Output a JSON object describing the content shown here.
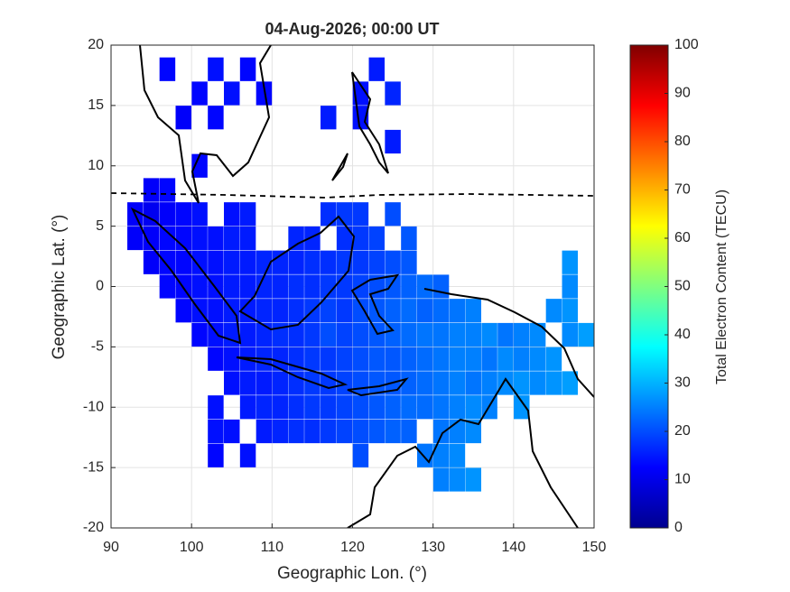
{
  "chart_data": {
    "type": "heatmap",
    "title": "04-Aug-2026; 00:00 UT",
    "x_label": "Geographic Lon. (°)",
    "y_label": "Geographic Lat. (°)",
    "xlim": [
      90,
      150
    ],
    "ylim": [
      -20,
      20
    ],
    "xticks": [
      90,
      100,
      110,
      120,
      130,
      140,
      150
    ],
    "yticks": [
      -20,
      -15,
      -10,
      -5,
      0,
      5,
      10,
      15,
      20
    ],
    "grid": true,
    "colormap": "jet",
    "colorbar": {
      "label": "Total Electron Content (TECU)",
      "lim": [
        0,
        100
      ],
      "ticks": [
        0,
        10,
        20,
        30,
        40,
        50,
        60,
        70,
        80,
        90,
        100
      ]
    },
    "x": [
      93,
      95,
      97,
      99,
      101,
      103,
      105,
      107,
      109,
      111,
      113,
      115,
      117,
      119,
      121,
      123,
      125,
      127,
      129,
      131,
      133,
      135,
      137,
      139,
      141,
      143,
      145,
      147,
      149
    ],
    "y": [
      18,
      16,
      14,
      12,
      10,
      8,
      6,
      4,
      2,
      0,
      -2,
      -4,
      -6,
      -8,
      -10,
      -12,
      -14,
      -16
    ],
    "values": [
      [
        null,
        null,
        13,
        null,
        null,
        14,
        null,
        13,
        null,
        null,
        null,
        null,
        null,
        null,
        null,
        15,
        null,
        null,
        null,
        null,
        null,
        null,
        null,
        null,
        null,
        null,
        null,
        null,
        null
      ],
      [
        null,
        null,
        null,
        null,
        13,
        null,
        14,
        null,
        13,
        null,
        null,
        null,
        null,
        null,
        14,
        null,
        16,
        null,
        null,
        null,
        null,
        null,
        null,
        null,
        null,
        null,
        null,
        null,
        null
      ],
      [
        null,
        null,
        null,
        12,
        null,
        13,
        null,
        null,
        null,
        null,
        null,
        null,
        15,
        null,
        14,
        null,
        null,
        null,
        null,
        null,
        null,
        null,
        null,
        null,
        null,
        null,
        null,
        null,
        null
      ],
      [
        null,
        null,
        null,
        null,
        null,
        null,
        null,
        null,
        null,
        null,
        null,
        null,
        null,
        null,
        null,
        null,
        15,
        null,
        null,
        null,
        null,
        null,
        null,
        null,
        null,
        null,
        null,
        null,
        null
      ],
      [
        null,
        null,
        null,
        null,
        13,
        null,
        null,
        null,
        null,
        null,
        null,
        null,
        null,
        null,
        null,
        null,
        null,
        null,
        null,
        null,
        null,
        null,
        null,
        null,
        null,
        null,
        null,
        null,
        null
      ],
      [
        null,
        12,
        13,
        null,
        null,
        null,
        null,
        null,
        null,
        null,
        null,
        null,
        null,
        null,
        null,
        null,
        null,
        null,
        null,
        null,
        null,
        null,
        null,
        null,
        null,
        null,
        null,
        null,
        null
      ],
      [
        12,
        11,
        12,
        13,
        14,
        null,
        14,
        15,
        null,
        null,
        null,
        null,
        17,
        18,
        18,
        null,
        20,
        null,
        null,
        null,
        null,
        null,
        null,
        null,
        null,
        null,
        null,
        null,
        null
      ],
      [
        12,
        12,
        13,
        13,
        14,
        14,
        15,
        15,
        null,
        null,
        16,
        16,
        null,
        17,
        18,
        19,
        null,
        21,
        null,
        null,
        null,
        null,
        null,
        null,
        null,
        null,
        null,
        null,
        null
      ],
      [
        null,
        12,
        13,
        13,
        14,
        14,
        15,
        15,
        16,
        16,
        16,
        17,
        17,
        18,
        18,
        19,
        20,
        21,
        null,
        null,
        null,
        null,
        null,
        null,
        null,
        null,
        null,
        27,
        null
      ],
      [
        null,
        null,
        13,
        13,
        14,
        14,
        15,
        15,
        16,
        16,
        17,
        17,
        18,
        18,
        19,
        20,
        21,
        22,
        23,
        22,
        null,
        null,
        null,
        null,
        null,
        null,
        null,
        26,
        null
      ],
      [
        null,
        null,
        null,
        13,
        14,
        14,
        15,
        15,
        16,
        16,
        17,
        18,
        19,
        18,
        20,
        21,
        22,
        23,
        22,
        23,
        24,
        25,
        null,
        null,
        null,
        null,
        26,
        27,
        null
      ],
      [
        null,
        null,
        null,
        null,
        13,
        14,
        15,
        15,
        16,
        17,
        17,
        18,
        20,
        19,
        20,
        21,
        22,
        23,
        24,
        24,
        25,
        25,
        26,
        24,
        25,
        26,
        null,
        26,
        28
      ],
      [
        null,
        null,
        null,
        null,
        null,
        13,
        14,
        15,
        16,
        16,
        17,
        18,
        18,
        19,
        20,
        21,
        21,
        22,
        23,
        24,
        25,
        25,
        24,
        26,
        25,
        26,
        27,
        null,
        null
      ],
      [
        null,
        null,
        null,
        null,
        null,
        null,
        14,
        15,
        15,
        16,
        17,
        18,
        18,
        19,
        20,
        21,
        21,
        22,
        23,
        24,
        25,
        24,
        25,
        26,
        27,
        26,
        27,
        28,
        null
      ],
      [
        null,
        null,
        null,
        null,
        null,
        14,
        null,
        15,
        16,
        16,
        17,
        18,
        18,
        19,
        20,
        21,
        22,
        23,
        23,
        24,
        25,
        26,
        25,
        null,
        27,
        null,
        null,
        null,
        null
      ],
      [
        null,
        null,
        null,
        null,
        null,
        14,
        14,
        null,
        15,
        16,
        17,
        17,
        18,
        19,
        20,
        21,
        22,
        22,
        null,
        24,
        25,
        26,
        null,
        null,
        null,
        null,
        null,
        null,
        null
      ],
      [
        null,
        null,
        null,
        null,
        null,
        13,
        null,
        14,
        null,
        null,
        null,
        null,
        null,
        null,
        20,
        null,
        null,
        null,
        24,
        25,
        26,
        null,
        null,
        null,
        null,
        null,
        null,
        null,
        null
      ],
      [
        null,
        null,
        null,
        null,
        null,
        null,
        null,
        null,
        null,
        null,
        null,
        null,
        null,
        null,
        null,
        null,
        null,
        null,
        null,
        25,
        26,
        27,
        null,
        null,
        null,
        null,
        null,
        null,
        null
      ]
    ]
  }
}
